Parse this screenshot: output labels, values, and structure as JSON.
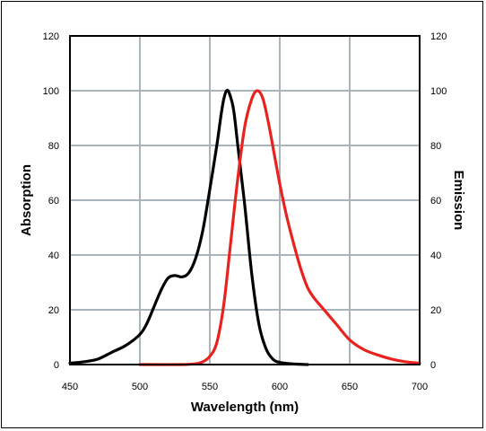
{
  "chart_data": {
    "type": "line",
    "title": "",
    "xlabel": "Wavelength (nm)",
    "ylabel_left": "Absorption",
    "ylabel_right": "Emission",
    "xlim": [
      450,
      700
    ],
    "ylim": [
      0,
      120
    ],
    "xticks": [
      450,
      500,
      550,
      600,
      650,
      700
    ],
    "yticks": [
      0,
      20,
      40,
      60,
      80,
      100,
      120
    ],
    "grid": true,
    "legend": "none",
    "series": [
      {
        "color": "#000000",
        "axis": "left",
        "x": [
          450,
          460,
          470,
          480,
          490,
          500,
          505,
          510,
          515,
          520,
          525,
          530,
          535,
          540,
          545,
          550,
          555,
          558,
          560,
          562,
          564,
          567,
          570,
          575,
          580,
          585,
          590,
          595,
          600,
          610,
          620
        ],
        "y": [
          0.5,
          1,
          2,
          4.5,
          7,
          11,
          15,
          21,
          27,
          31.5,
          32.5,
          32,
          33.5,
          39,
          49,
          64,
          80,
          91,
          97,
          100,
          99,
          93,
          80,
          58,
          33,
          15,
          6,
          2,
          0.8,
          0.2,
          0
        ]
      },
      {
        "color": "#e8231f",
        "axis": "right",
        "x": [
          500,
          530,
          540,
          545,
          550,
          555,
          560,
          565,
          570,
          575,
          580,
          584,
          588,
          592,
          596,
          600,
          605,
          610,
          615,
          620,
          625,
          630,
          640,
          650,
          660,
          670,
          680,
          690,
          700
        ],
        "y": [
          0,
          0,
          0.3,
          1,
          3,
          8,
          22,
          45,
          68,
          87,
          97,
          100,
          97,
          88,
          77,
          66,
          54,
          44,
          35,
          28,
          24,
          21,
          15,
          9,
          5.5,
          3.5,
          2,
          1,
          0.5
        ]
      }
    ]
  }
}
